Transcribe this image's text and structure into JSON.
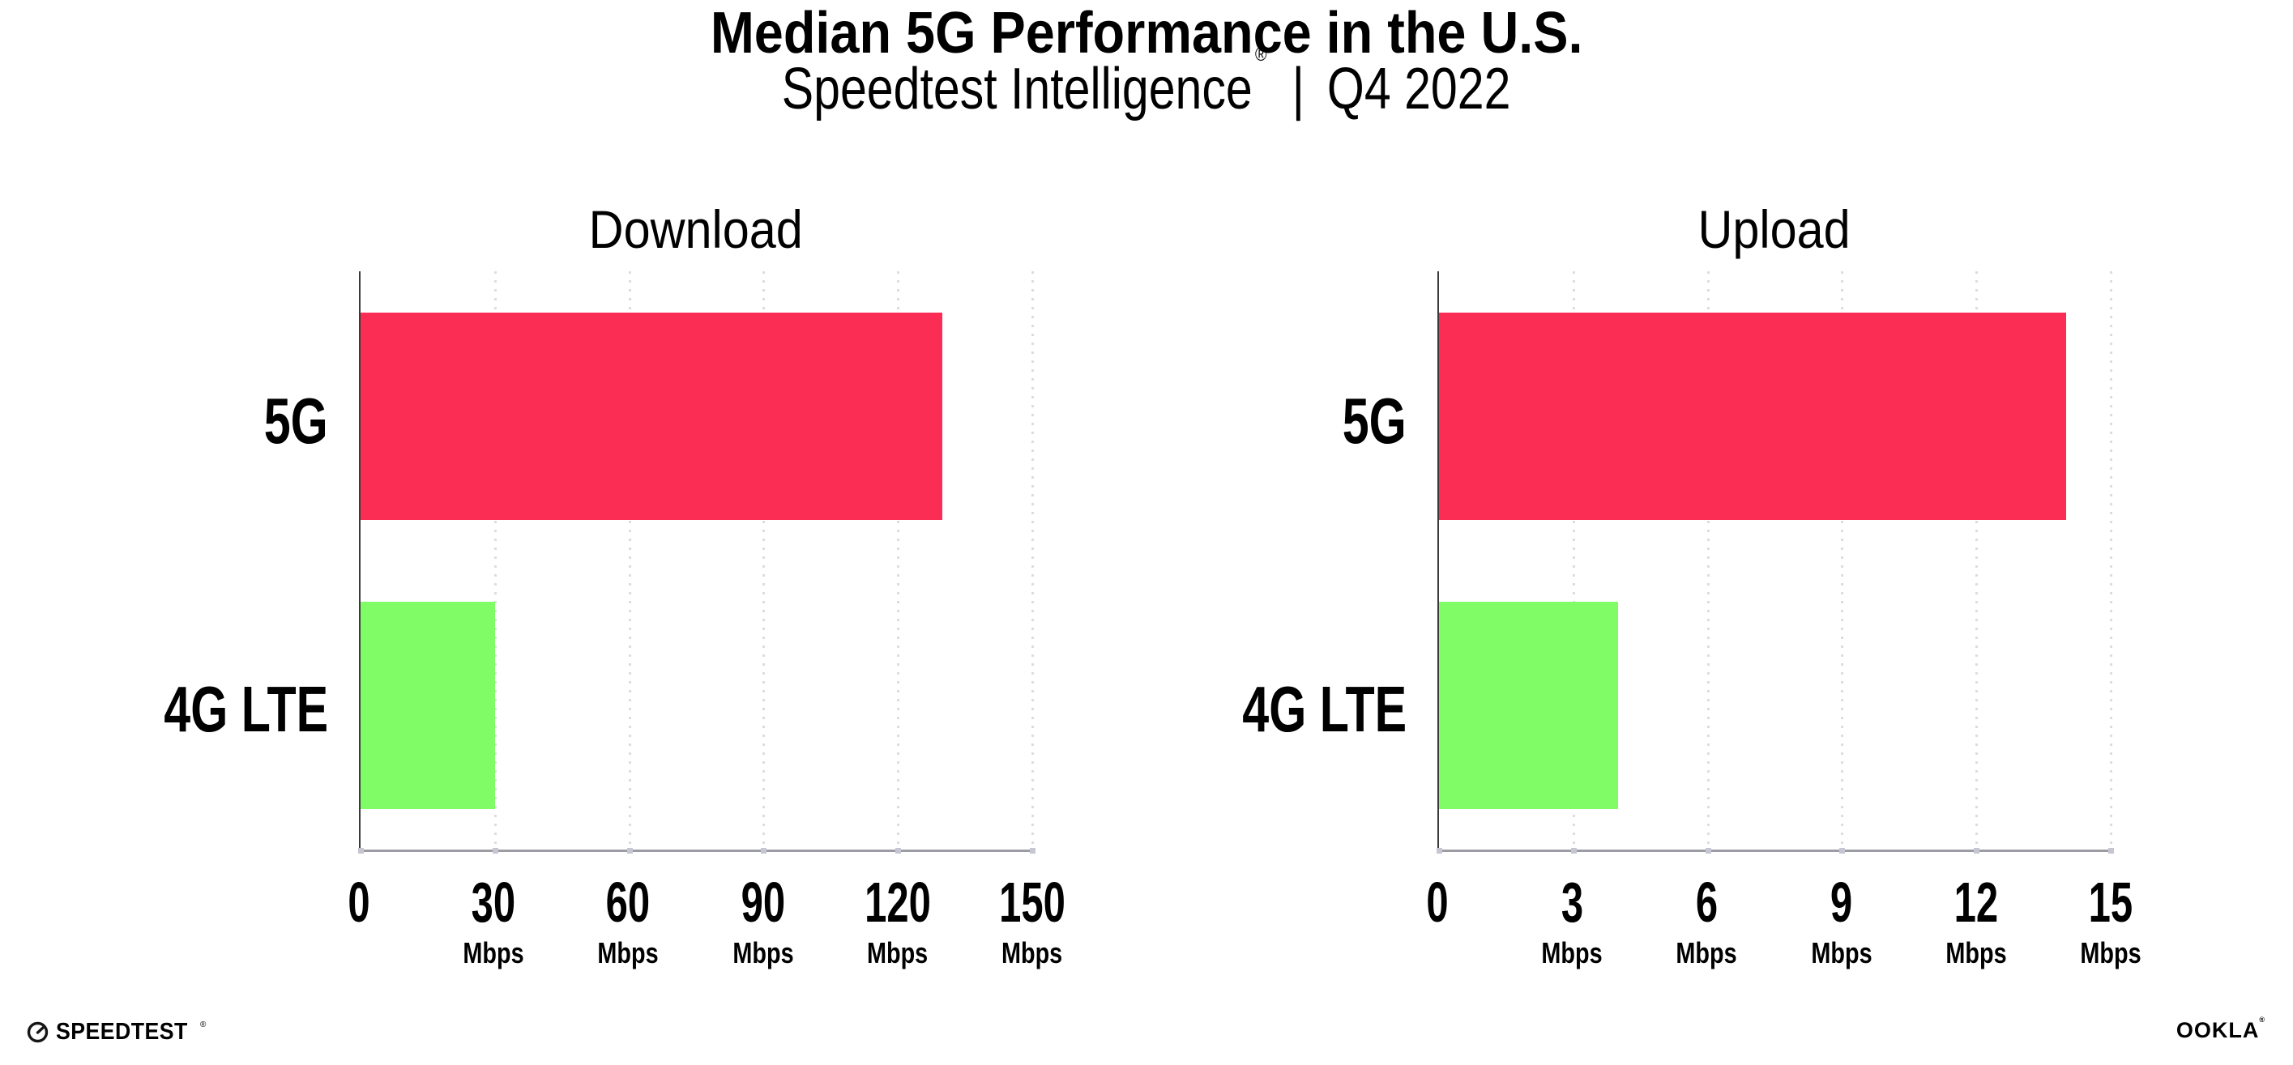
{
  "header": {
    "title": "Median 5G Performance in the U.S.",
    "subtitle_brand": "Speedtest Intelligence",
    "subtitle_reg": "®",
    "subtitle_separator": "|",
    "subtitle_period": "Q4 2022"
  },
  "chart_data": [
    {
      "type": "bar",
      "orientation": "horizontal",
      "title": "Download",
      "categories": [
        "5G",
        "4G LTE"
      ],
      "values": [
        130,
        30
      ],
      "unit": "Mbps",
      "xlim": [
        0,
        150
      ],
      "xticks": [
        0,
        30,
        60,
        90,
        120,
        150
      ],
      "bar_colors": [
        "#FC2D55",
        "#80FC66"
      ],
      "grid": "dotted-vertical",
      "xlabel": "",
      "ylabel": ""
    },
    {
      "type": "bar",
      "orientation": "horizontal",
      "title": "Upload",
      "categories": [
        "5G",
        "4G LTE"
      ],
      "values": [
        14,
        4
      ],
      "unit": "Mbps",
      "xlim": [
        0,
        15
      ],
      "xticks": [
        0,
        3,
        6,
        9,
        12,
        15
      ],
      "bar_colors": [
        "#FC2D55",
        "#80FC66"
      ],
      "grid": "dotted-vertical",
      "xlabel": "",
      "ylabel": ""
    }
  ],
  "footer": {
    "speedtest_label": "SPEEDTEST",
    "speedtest_reg": "®",
    "ookla_label": "OOKLA",
    "ookla_reg": "®"
  },
  "theme": {
    "background": "#FFFFFF",
    "text": "#000000",
    "bar_5g": "#FC2D55",
    "bar_4g": "#80FC66",
    "gridline": "#DCDCE6",
    "x_axis": "#9B9BA3",
    "y_axis": "#3A3A3A",
    "tick_dot": "#C6C6D3"
  }
}
